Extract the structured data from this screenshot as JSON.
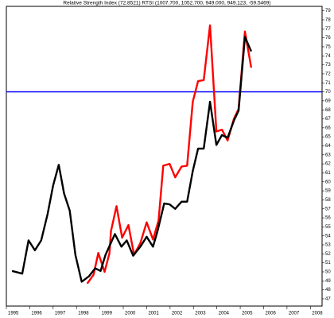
{
  "chart_data": {
    "type": "line",
    "title": "Relative Strength Index (72.8521) RTSI (1007.700, 1052.700, 949.000, 949.123, -59.5469)",
    "series": [
      {
        "name": "RTSI",
        "color": "#000000",
        "x": [
          1995.24,
          1995.68,
          1995.95,
          1996.22,
          1996.49,
          1996.76,
          1997.0,
          1997.24,
          1997.47,
          1997.71,
          1997.95,
          1998.22,
          1998.53,
          1998.8,
          1999.03,
          1999.24,
          1999.64,
          1999.92,
          2000.15,
          2000.42,
          2000.73,
          2001.0,
          2001.27,
          2001.47,
          2001.75,
          2001.98,
          2002.22,
          2002.49,
          2002.73,
          2002.97,
          2003.2,
          2003.44,
          2003.71,
          2003.98,
          2004.22,
          2004.46,
          2004.73,
          2004.93,
          2005.2,
          2005.47
        ],
        "values": [
          50.1,
          49.8,
          53.5,
          52.4,
          53.5,
          56.4,
          59.6,
          61.9,
          58.7,
          56.8,
          51.9,
          48.9,
          49.5,
          50.4,
          50.1,
          51.9,
          54.2,
          52.8,
          53.5,
          51.8,
          52.8,
          53.9,
          52.8,
          54.6,
          57.6,
          57.5,
          57.0,
          57.8,
          57.8,
          61.2,
          63.7,
          63.7,
          68.9,
          64.1,
          65.2,
          64.9,
          66.8,
          67.9,
          76.1,
          74.5
        ]
      },
      {
        "name": "RSI",
        "color": "#ff0000",
        "x": [
          1998.46,
          1998.73,
          1998.93,
          1999.2,
          1999.41,
          1999.47,
          1999.71,
          1999.95,
          2000.22,
          2000.46,
          2000.73,
          2001.0,
          2001.27,
          2001.51,
          2001.71,
          2001.98,
          2002.22,
          2002.49,
          2002.73,
          2002.97,
          2003.2,
          2003.44,
          2003.71,
          2003.98,
          2004.22,
          2004.46,
          2004.73,
          2004.93,
          2005.2,
          2005.47
        ],
        "values": [
          48.7,
          49.7,
          52.1,
          50.0,
          52.1,
          54.5,
          57.3,
          53.8,
          55.2,
          51.9,
          53.2,
          55.5,
          53.6,
          55.7,
          61.8,
          62.0,
          60.5,
          61.7,
          61.8,
          68.9,
          71.2,
          71.3,
          77.4,
          65.6,
          65.8,
          64.6,
          67.0,
          68.1,
          76.7,
          72.7
        ]
      }
    ],
    "hline": 70,
    "hline_color": "#0000ff",
    "xlim": [
      1995.0,
      2008.5
    ],
    "xticks": [
      1995,
      1996,
      1997,
      1998,
      1999,
      2000,
      2001,
      2002,
      2003,
      2004,
      2005,
      2006,
      2007,
      2008
    ],
    "ylim": [
      46.2,
      79.5
    ],
    "yticks": [
      47,
      48,
      49,
      50,
      51,
      52,
      53,
      54,
      55,
      56,
      57,
      58,
      59,
      60,
      61,
      62,
      63,
      64,
      65,
      66,
      67,
      68,
      69,
      70,
      71,
      72,
      73,
      74,
      75,
      76,
      77,
      78,
      79
    ],
    "yaxis_side": "right"
  }
}
